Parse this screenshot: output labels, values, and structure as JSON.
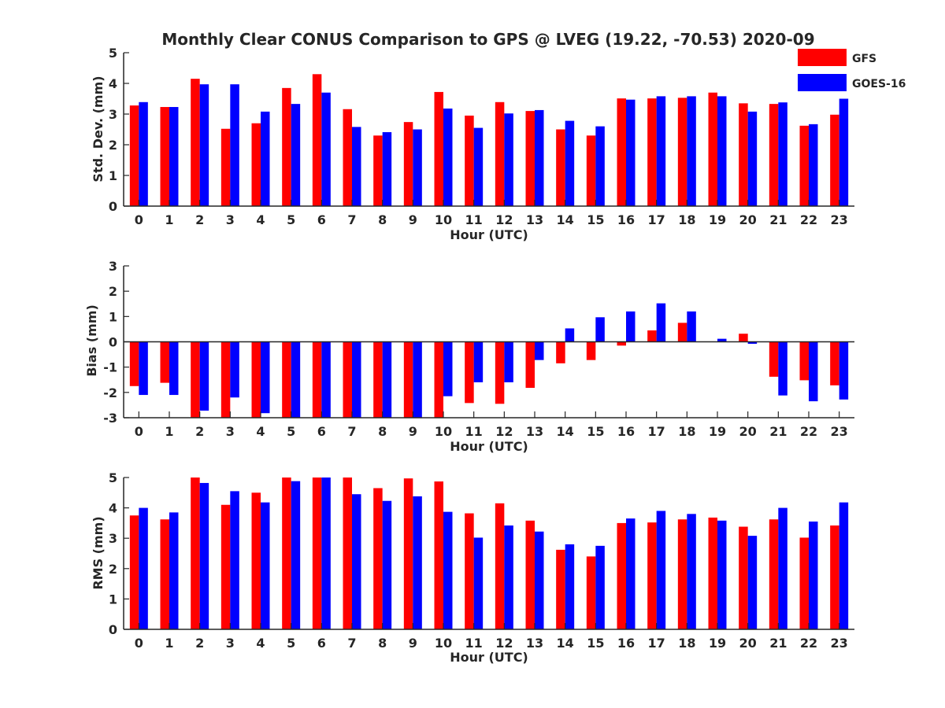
{
  "figure": {
    "title": "Monthly Clear CONUS Comparison to GPS @ LVEG (19.22, -70.53) 2020-09"
  },
  "legend": {
    "placement": "top-right, outside plot area",
    "items": [
      {
        "label": "GFS",
        "color": "#ff0000"
      },
      {
        "label": "GOES-16",
        "color": "#0000ff"
      }
    ]
  },
  "chart_data": [
    {
      "type": "bar",
      "title": "Monthly Clear CONUS Comparison to GPS @ LVEG (19.22, -70.53) 2020-09",
      "xlabel": "Hour (UTC)",
      "ylabel": "Std. Dev. (mm)",
      "ylim": [
        0,
        5
      ],
      "yticks": [
        0,
        1,
        2,
        3,
        4,
        5
      ],
      "categories": [
        "0",
        "1",
        "2",
        "3",
        "4",
        "5",
        "6",
        "7",
        "8",
        "9",
        "10",
        "11",
        "12",
        "13",
        "14",
        "15",
        "16",
        "17",
        "18",
        "19",
        "20",
        "21",
        "22",
        "23"
      ],
      "grid": false,
      "series": [
        {
          "name": "GFS",
          "color": "#ff0000",
          "values": [
            3.28,
            3.23,
            4.15,
            2.52,
            2.7,
            3.85,
            4.3,
            3.16,
            2.3,
            2.74,
            3.72,
            2.95,
            3.39,
            3.1,
            2.5,
            2.3,
            3.51,
            3.51,
            3.53,
            3.7,
            3.35,
            3.33,
            2.62,
            2.98
          ]
        },
        {
          "name": "GOES-16",
          "color": "#0000ff",
          "values": [
            3.39,
            3.23,
            3.97,
            3.97,
            3.08,
            3.33,
            3.7,
            2.58,
            2.41,
            2.5,
            3.18,
            2.55,
            3.02,
            3.13,
            2.78,
            2.6,
            3.47,
            3.58,
            3.58,
            3.58,
            3.08,
            3.38,
            2.67,
            3.5
          ]
        }
      ]
    },
    {
      "type": "bar",
      "xlabel": "Hour (UTC)",
      "ylabel": "Bias (mm)",
      "ylim": [
        -3,
        3
      ],
      "yticks": [
        -3,
        -2,
        -1,
        0,
        1,
        2,
        3
      ],
      "categories": [
        "0",
        "1",
        "2",
        "3",
        "4",
        "5",
        "6",
        "7",
        "8",
        "9",
        "10",
        "11",
        "12",
        "13",
        "14",
        "15",
        "16",
        "17",
        "18",
        "19",
        "20",
        "21",
        "22",
        "23"
      ],
      "grid": false,
      "series": [
        {
          "name": "GFS",
          "color": "#ff0000",
          "values": [
            -1.75,
            -1.62,
            -3.0,
            -3.0,
            -3.0,
            -3.0,
            -3.0,
            -3.0,
            -3.0,
            -3.0,
            -3.0,
            -2.42,
            -2.45,
            -1.82,
            -0.85,
            -0.72,
            -0.15,
            0.45,
            0.75,
            0.0,
            0.32,
            -1.38,
            -1.52,
            -1.72
          ]
        },
        {
          "name": "GOES-16",
          "color": "#0000ff",
          "values": [
            -2.1,
            -2.1,
            -2.72,
            -2.2,
            -2.82,
            -3.0,
            -3.0,
            -3.0,
            -3.0,
            -3.0,
            -2.15,
            -1.6,
            -1.6,
            -0.72,
            0.53,
            0.97,
            1.2,
            1.52,
            1.2,
            0.12,
            -0.08,
            -2.12,
            -2.35,
            -2.28
          ]
        }
      ]
    },
    {
      "type": "bar",
      "xlabel": "Hour (UTC)",
      "ylabel": "RMS (mm)",
      "ylim": [
        0,
        5
      ],
      "yticks": [
        0,
        1,
        2,
        3,
        4,
        5
      ],
      "categories": [
        "0",
        "1",
        "2",
        "3",
        "4",
        "5",
        "6",
        "7",
        "8",
        "9",
        "10",
        "11",
        "12",
        "13",
        "14",
        "15",
        "16",
        "17",
        "18",
        "19",
        "20",
        "21",
        "22",
        "23"
      ],
      "grid": false,
      "series": [
        {
          "name": "GFS",
          "color": "#ff0000",
          "values": [
            3.75,
            3.62,
            5.0,
            4.1,
            4.5,
            5.0,
            5.0,
            5.0,
            4.65,
            4.97,
            4.87,
            3.82,
            4.15,
            3.58,
            2.62,
            2.4,
            3.5,
            3.52,
            3.62,
            3.68,
            3.38,
            3.62,
            3.02,
            3.42
          ]
        },
        {
          "name": "GOES-16",
          "color": "#0000ff",
          "values": [
            4.0,
            3.85,
            4.82,
            4.55,
            4.18,
            4.88,
            5.0,
            4.45,
            4.23,
            4.38,
            3.87,
            3.02,
            3.42,
            3.22,
            2.8,
            2.75,
            3.65,
            3.9,
            3.8,
            3.58,
            3.08,
            4.0,
            3.55,
            4.18
          ]
        }
      ]
    }
  ]
}
